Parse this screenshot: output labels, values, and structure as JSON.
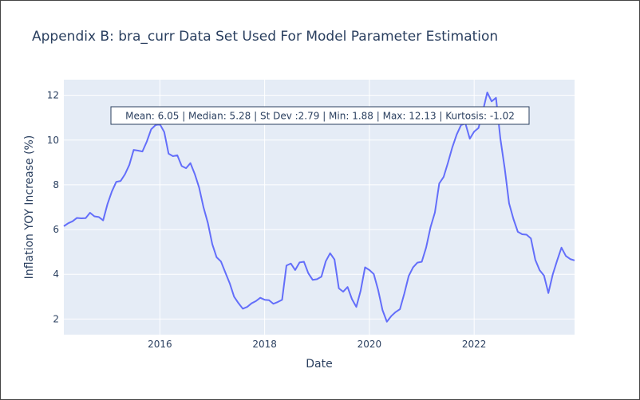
{
  "chart_data": {
    "type": "line",
    "title": "Appendix B: bra_curr Data Set Used For Model Parameter Estimation",
    "xlabel": "Date",
    "ylabel": "Inflation YOY Increase (%)",
    "xlim": [
      "2014-03-01",
      "2023-12-01"
    ],
    "ylim": [
      1.3,
      12.7
    ],
    "x_ticks": [
      "2016",
      "2018",
      "2020",
      "2022"
    ],
    "y_ticks": [
      2,
      4,
      6,
      8,
      10,
      12
    ],
    "grid": true,
    "legend": "none",
    "annotation": "Mean: 6.05 | Median: 5.28 | St Dev :2.79 | Min: 1.88 | Max: 12.13 | Kurtosis: -1.02",
    "series_color": "#636efa",
    "plot_bg": "#e5ecf6",
    "series": [
      {
        "x": [
          "2014-03",
          "2014-04",
          "2014-05",
          "2014-06",
          "2014-07",
          "2014-08",
          "2014-09",
          "2014-10",
          "2014-11",
          "2014-12",
          "2015-01",
          "2015-02",
          "2015-03",
          "2015-04",
          "2015-05",
          "2015-06",
          "2015-07",
          "2015-08",
          "2015-09",
          "2015-10",
          "2015-11",
          "2015-12",
          "2016-01",
          "2016-02",
          "2016-03",
          "2016-04",
          "2016-05",
          "2016-06",
          "2016-07",
          "2016-08",
          "2016-09",
          "2016-10",
          "2016-11",
          "2016-12",
          "2017-01",
          "2017-02",
          "2017-03",
          "2017-04",
          "2017-05",
          "2017-06",
          "2017-07",
          "2017-08",
          "2017-09",
          "2017-10",
          "2017-11",
          "2017-12",
          "2018-01",
          "2018-02",
          "2018-03",
          "2018-04",
          "2018-05",
          "2018-06",
          "2018-07",
          "2018-08",
          "2018-09",
          "2018-10",
          "2018-11",
          "2018-12",
          "2019-01",
          "2019-02",
          "2019-03",
          "2019-04",
          "2019-05",
          "2019-06",
          "2019-07",
          "2019-08",
          "2019-09",
          "2019-10",
          "2019-11",
          "2019-12",
          "2020-01",
          "2020-02",
          "2020-03",
          "2020-04",
          "2020-05",
          "2020-06",
          "2020-07",
          "2020-08",
          "2020-09",
          "2020-10",
          "2020-11",
          "2020-12",
          "2021-01",
          "2021-02",
          "2021-03",
          "2021-04",
          "2021-05",
          "2021-06",
          "2021-07",
          "2021-08",
          "2021-09",
          "2021-10",
          "2021-11",
          "2021-12",
          "2022-01",
          "2022-02",
          "2022-03",
          "2022-04",
          "2022-05",
          "2022-06",
          "2022-07",
          "2022-08",
          "2022-09",
          "2022-10",
          "2022-11",
          "2022-12",
          "2023-01",
          "2023-02",
          "2023-03",
          "2023-04",
          "2023-05",
          "2023-06",
          "2023-07",
          "2023-08",
          "2023-09",
          "2023-10",
          "2023-11",
          "2023-12"
        ],
        "y": [
          6.15,
          6.28,
          6.37,
          6.52,
          6.5,
          6.51,
          6.75,
          6.59,
          6.56,
          6.41,
          7.14,
          7.7,
          8.13,
          8.17,
          8.47,
          8.89,
          9.56,
          9.53,
          9.49,
          9.93,
          10.48,
          10.67,
          10.71,
          10.36,
          9.39,
          9.28,
          9.32,
          8.84,
          8.74,
          8.97,
          8.48,
          7.87,
          6.99,
          6.29,
          5.35,
          4.76,
          4.57,
          4.08,
          3.6,
          3.0,
          2.71,
          2.46,
          2.54,
          2.7,
          2.8,
          2.95,
          2.86,
          2.84,
          2.68,
          2.76,
          2.86,
          4.39,
          4.48,
          4.19,
          4.53,
          4.56,
          4.05,
          3.75,
          3.78,
          3.89,
          4.58,
          4.94,
          4.66,
          3.37,
          3.22,
          3.43,
          2.89,
          2.54,
          3.27,
          4.31,
          4.19,
          4.01,
          3.3,
          2.4,
          1.88,
          2.13,
          2.31,
          2.44,
          3.14,
          3.92,
          4.31,
          4.52,
          4.56,
          5.2,
          6.1,
          6.76,
          8.06,
          8.35,
          8.99,
          9.68,
          10.25,
          10.67,
          10.74,
          10.06,
          10.38,
          10.54,
          11.3,
          12.13,
          11.73,
          11.89,
          10.07,
          8.73,
          7.17,
          6.47,
          5.9,
          5.79,
          5.77,
          5.6,
          4.65,
          4.18,
          3.94,
          3.16,
          3.99,
          4.61,
          5.19,
          4.82,
          4.68,
          4.62
        ]
      }
    ]
  }
}
